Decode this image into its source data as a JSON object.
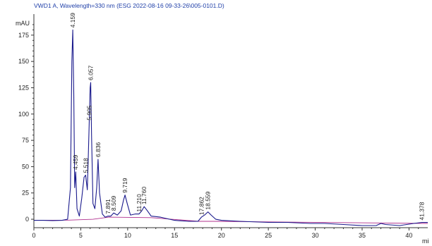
{
  "chart_data": {
    "type": "line",
    "title": "VWD1 A, Wavelength=330 nm (ESG 2022-08-16 09-33-26\\005-0101.D)",
    "ylabel": "mAU",
    "xlabel": "mi",
    "xlim": [
      0,
      42
    ],
    "ylim": [
      -8,
      195
    ],
    "xticks": [
      0,
      5,
      10,
      15,
      20,
      25,
      30,
      35,
      40
    ],
    "yticks": [
      0,
      25,
      50,
      75,
      100,
      125,
      150,
      175
    ],
    "grid": false,
    "colors": {
      "trace": "#1a1a8c",
      "baseline": "#b0308e",
      "title": "#1f3fa8"
    },
    "series": [
      {
        "x": [
          0,
          1,
          2,
          3,
          3.6,
          3.9,
          4.05,
          4.15,
          4.25,
          4.35,
          4.46,
          4.6,
          4.85,
          5.1,
          5.35,
          5.52,
          5.7,
          5.8,
          5.9,
          6.0,
          6.06,
          6.15,
          6.3,
          6.5,
          6.7,
          6.84,
          7.0,
          7.3,
          7.6,
          7.89,
          8.2,
          8.51,
          8.9,
          9.3,
          9.55,
          9.72,
          9.95,
          10.3,
          10.8,
          11.21,
          11.5,
          11.76,
          12.1,
          12.5,
          13.5,
          15,
          16.5,
          17.5,
          17.86,
          18.2,
          18.56,
          18.9,
          19.4,
          20,
          22,
          25,
          27,
          29.5,
          31,
          33,
          35,
          36.5,
          37,
          37.5,
          39,
          40.5,
          41.38,
          42
        ],
        "values": [
          -1,
          -1,
          -1.2,
          -1,
          0,
          30,
          150,
          180,
          120,
          30,
          45,
          10,
          3,
          20,
          40,
          42,
          28,
          60,
          92,
          125,
          130,
          80,
          15,
          10,
          30,
          57,
          25,
          5,
          2,
          3,
          3,
          6,
          4,
          8,
          18,
          23,
          15,
          4,
          5,
          5,
          8,
          12,
          8,
          3,
          2,
          -1,
          -2,
          -2,
          2,
          4,
          7,
          4,
          0,
          -1,
          -2,
          -3,
          -3,
          -4,
          -4,
          -5,
          -6,
          -6,
          -4,
          -5,
          -6,
          -4,
          -3,
          -3
        ]
      },
      {
        "name": "",
        "x": [
          0,
          3.7,
          6.3,
          8.0,
          12.5,
          17.6,
          19.2,
          42
        ],
        "values": [
          -1,
          -0.8,
          0,
          2,
          1.5,
          -2,
          -2,
          -4
        ]
      }
    ],
    "peaks": [
      {
        "label": "4.159",
        "rt": 4.159,
        "height": 180
      },
      {
        "label": "4.459",
        "rt": 4.459,
        "height": 45
      },
      {
        "label": "5.518",
        "rt": 5.518,
        "height": 42
      },
      {
        "label": "5.905",
        "rt": 5.905,
        "height": 92
      },
      {
        "label": "6.057",
        "rt": 6.057,
        "height": 130
      },
      {
        "label": "6.836",
        "rt": 6.836,
        "height": 57
      },
      {
        "label": "7.891",
        "rt": 7.891,
        "height": 3
      },
      {
        "label": "8.509",
        "rt": 8.509,
        "height": 6
      },
      {
        "label": "9.719",
        "rt": 9.719,
        "height": 23
      },
      {
        "label": "11.210",
        "rt": 11.21,
        "height": 5
      },
      {
        "label": "11.760",
        "rt": 11.76,
        "height": 12
      },
      {
        "label": "17.862",
        "rt": 17.862,
        "height": 2
      },
      {
        "label": "18.559",
        "rt": 18.559,
        "height": 7
      },
      {
        "label": "41.378",
        "rt": 41.378,
        "height": -3
      }
    ]
  }
}
